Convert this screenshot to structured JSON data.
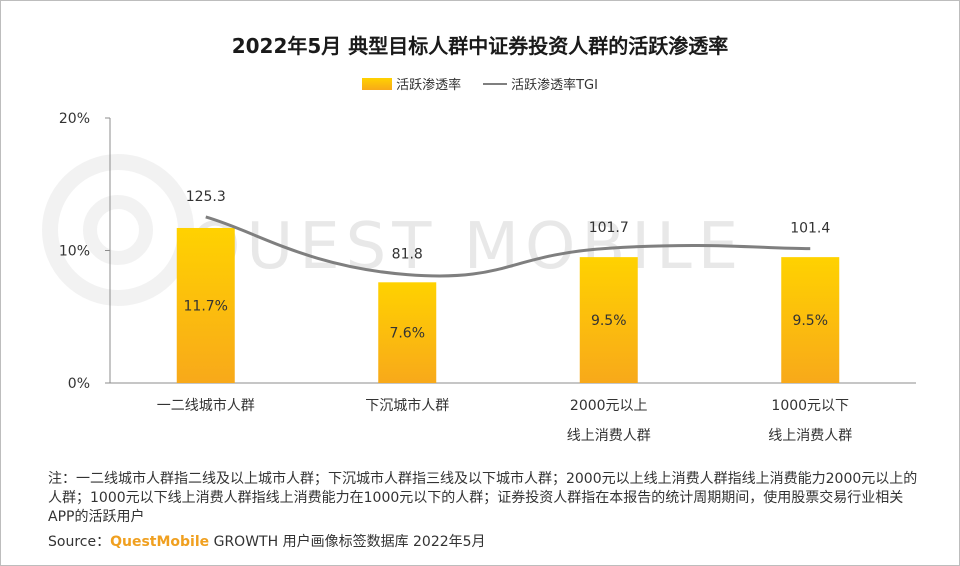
{
  "chart_data": {
    "type": "bar",
    "title": "2022年5月 典型目标人群中证券投资人群的活跃渗透率",
    "categories": [
      "一二线城市人群",
      "下沉城市人群",
      "2000元以上\n线上消费人群",
      "1000元以下\n线上消费人群"
    ],
    "series": [
      {
        "name": "活跃渗透率",
        "type": "bar",
        "values": [
          11.7,
          7.6,
          9.5,
          9.5
        ],
        "labels": [
          "11.7%",
          "7.6%",
          "9.5%",
          "9.5%"
        ]
      },
      {
        "name": "活跃渗透率TGI",
        "type": "line",
        "values": [
          125.3,
          81.8,
          101.7,
          101.4
        ],
        "labels": [
          "125.3",
          "81.8",
          "101.7",
          "101.4"
        ]
      }
    ],
    "yaxis": {
      "ticks": [
        "20%",
        "10%",
        "0%"
      ],
      "range": [
        0,
        20
      ]
    },
    "tgi_range": [
      0,
      200
    ],
    "colors": {
      "bar_top": "#ffd200",
      "bar_bottom": "#f8a91a",
      "line": "#7f7f7f"
    }
  },
  "legend": {
    "bar": "活跃渗透率",
    "line": "活跃渗透率TGI"
  },
  "note": "注：一二线城市人群指二线及以上城市人群；下沉城市人群指三线及以下城市人群；2000元以上线上消费人群指线上消费能力2000元以上的人群；1000元以下线上消费人群指线上消费能力在1000元以下的人群；证券投资人群指在本报告的统计周期期间，使用股票交易行业相关APP的活跃用户",
  "source": {
    "prefix": "Source：",
    "brand": "QuestMobile",
    "rest": " GROWTH 用户画像标签数据库 2022年5月"
  },
  "watermark": "QUEST MOBILE"
}
